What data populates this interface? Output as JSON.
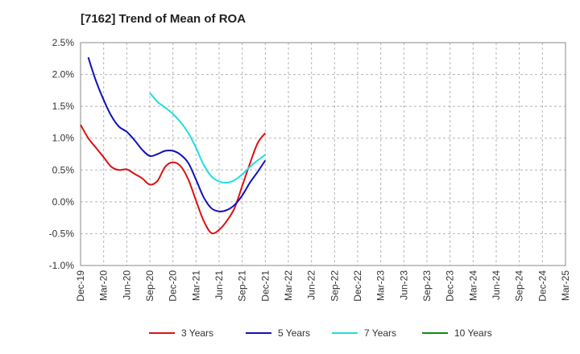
{
  "chart_data": {
    "type": "line",
    "title": "[7162]  Trend of Mean of ROA",
    "xlabel": "",
    "ylabel": "",
    "ylim": [
      -1.0,
      2.5
    ],
    "grid": true,
    "legend_position": "bottom",
    "x_ticks": [
      "Dec-19",
      "Mar-20",
      "Jun-20",
      "Sep-20",
      "Dec-20",
      "Mar-21",
      "Jun-21",
      "Sep-21",
      "Dec-21",
      "Mar-22",
      "Jun-22",
      "Sep-22",
      "Dec-22",
      "Mar-23",
      "Jun-23",
      "Sep-23",
      "Dec-23",
      "Mar-24",
      "Jun-24",
      "Sep-24",
      "Dec-24",
      "Mar-25"
    ],
    "y_ticks": [
      "2.5%",
      "2.0%",
      "1.5%",
      "1.0%",
      "0.5%",
      "0.0%",
      "-0.5%",
      "-1.0%"
    ],
    "y_tick_values": [
      2.5,
      2.0,
      1.5,
      1.0,
      0.5,
      0.0,
      -0.5,
      -1.0
    ],
    "series": [
      {
        "name": "3 Years",
        "color": "#dd1111",
        "start_index": 0,
        "values": [
          1.21,
          1.0,
          0.85,
          0.7,
          0.55,
          0.5,
          0.51,
          0.44,
          0.37,
          0.27,
          0.33,
          0.55,
          0.62,
          0.56,
          0.35,
          0.02,
          -0.3,
          -0.49,
          -0.44,
          -0.3,
          -0.1,
          0.25,
          0.6,
          0.92,
          1.08
        ]
      },
      {
        "name": "5 Years",
        "color": "#1111bb",
        "start_index": 1,
        "values": [
          2.27,
          1.9,
          1.6,
          1.35,
          1.18,
          1.1,
          0.97,
          0.82,
          0.72,
          0.75,
          0.8,
          0.8,
          0.74,
          0.61,
          0.35,
          0.07,
          -0.1,
          -0.15,
          -0.13,
          -0.05,
          0.1,
          0.3,
          0.47,
          0.65
        ]
      },
      {
        "name": "7 Years",
        "color": "#22dddd",
        "start_index": 9,
        "values": [
          1.71,
          1.57,
          1.48,
          1.38,
          1.25,
          1.08,
          0.85,
          0.58,
          0.4,
          0.32,
          0.3,
          0.34,
          0.43,
          0.55,
          0.65,
          0.74
        ]
      },
      {
        "name": "10 Years",
        "color": "#118811",
        "start_index": 0,
        "values": []
      }
    ]
  }
}
